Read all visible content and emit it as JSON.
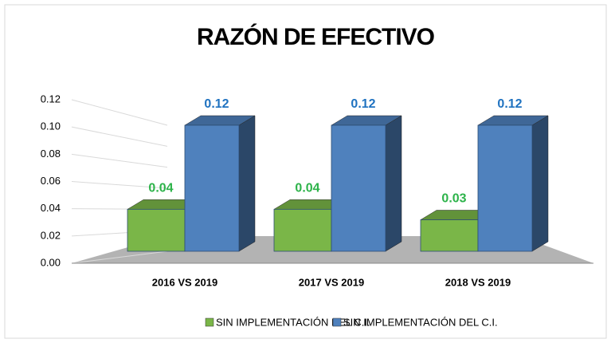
{
  "chart_data": {
    "type": "bar3d",
    "title": "RAZÓN DE EFECTIVO",
    "categories": [
      "2016 VS 2019",
      "2017 VS 2019",
      "2018 VS 2019"
    ],
    "series": [
      {
        "name": "SIN IMPLEMENTACIÓN DEL C.I.",
        "color": "#7ab648",
        "label_color": "#2db34a",
        "values": [
          0.04,
          0.04,
          0.03
        ]
      },
      {
        "name": "SIN IMPLEMENTACIÓN DEL C.I.",
        "color": "#4f81bd",
        "label_color": "#1f72c0",
        "values": [
          0.12,
          0.12,
          0.12
        ]
      }
    ],
    "ylim": [
      0,
      0.12
    ],
    "yticks": [
      {
        "value": 0,
        "label": "0.00"
      },
      0.02,
      0.04,
      0.06,
      0.08,
      {
        "value": 0.1,
        "label": "0.10"
      },
      0.12
    ],
    "grid": true,
    "legend": "bottom"
  }
}
